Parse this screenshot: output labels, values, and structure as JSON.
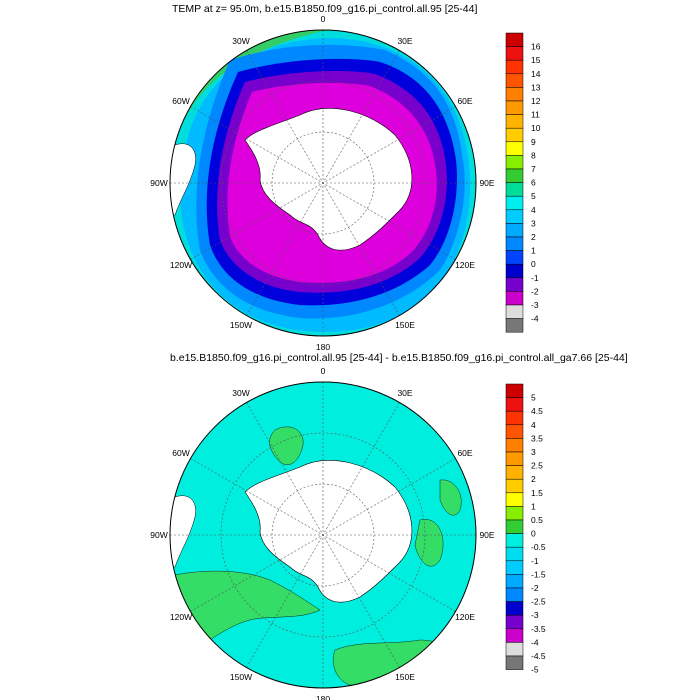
{
  "panel1": {
    "title": "TEMP at z=  95.0m, b.e15.B1850.f09_g16.pi_control.all.95 [25-44]",
    "lon_labels": [
      "0",
      "30E",
      "60E",
      "90E",
      "120E",
      "150E",
      "180",
      "150W",
      "120W",
      "90W",
      "60W",
      "30W"
    ],
    "colorbar": {
      "labels": [
        "16",
        "15",
        "14",
        "13",
        "12",
        "11",
        "10",
        "9",
        "8",
        "7",
        "6",
        "5",
        "4",
        "3",
        "2",
        "1",
        "0",
        "-1",
        "-2",
        "-3",
        "-4"
      ],
      "colors": [
        "#cc0000",
        "#ee1111",
        "#ff3300",
        "#ff5500",
        "#ff7f00",
        "#ff9900",
        "#ffb300",
        "#ffcc00",
        "#ffff00",
        "#88ee00",
        "#33cc33",
        "#00dd99",
        "#00eeee",
        "#00ccff",
        "#00aaff",
        "#0088ff",
        "#0044ff",
        "#0000cc",
        "#7700cc",
        "#cc00cc",
        "#dddddd",
        "#777777"
      ]
    }
  },
  "panel2": {
    "title": "b.e15.B1850.f09_g16.pi_control.all.95 [25-44] - b.e15.B1850.f09_g16.pi_control.all_ga7.66 [25-44]",
    "lon_labels": [
      "0",
      "30E",
      "60E",
      "90E",
      "120E",
      "150E",
      "180",
      "150W",
      "120W",
      "90W",
      "60W",
      "30W"
    ],
    "colorbar": {
      "labels": [
        "5",
        "4.5",
        "4",
        "3.5",
        "3",
        "2.5",
        "2",
        "1.5",
        "1",
        "0.5",
        "0",
        "-0.5",
        "-1",
        "-1.5",
        "-2",
        "-2.5",
        "-3",
        "-3.5",
        "-4",
        "-4.5",
        "-5"
      ],
      "colors": [
        "#cc0000",
        "#ee1111",
        "#ff3300",
        "#ff5500",
        "#ff7f00",
        "#ff9900",
        "#ffb300",
        "#ffcc00",
        "#ffff00",
        "#88ee00",
        "#33cc33",
        "#00eedd",
        "#00ddee",
        "#00ccff",
        "#00aaff",
        "#0088ff",
        "#0000cc",
        "#7700cc",
        "#cc00cc",
        "#dddddd",
        "#777777"
      ]
    }
  }
}
